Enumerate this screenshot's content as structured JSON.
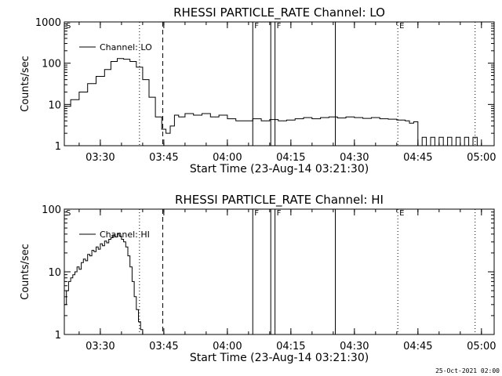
{
  "footer": {
    "timestamp": "25-Oct-2021 02:00"
  },
  "chart_data": [
    {
      "type": "line",
      "title": "RHESSI PARTICLE_RATE Channel: LO",
      "xlabel": "Start Time (23-Aug-14 03:21:30)",
      "ylabel": "Counts/sec",
      "yscale": "log",
      "xlim": [
        "03:21:30",
        "05:03:00"
      ],
      "ylim": [
        1,
        1000
      ],
      "x_ticks": [
        "03:30",
        "03:45",
        "04:00",
        "04:15",
        "04:30",
        "04:45",
        "05:00"
      ],
      "y_ticks": [
        "1",
        "10",
        "100",
        "1000"
      ],
      "legend": "top-left",
      "series": [
        {
          "name": "Channel: LO",
          "x": [
            "03:21:30",
            "03:23:00",
            "03:25:00",
            "03:27:00",
            "03:29:00",
            "03:31:00",
            "03:32:30",
            "03:34:00",
            "03:35:30",
            "03:37:00",
            "03:38:30",
            "03:40:00",
            "03:41:30",
            "03:43:00",
            "03:44:30",
            "03:45:30",
            "03:46:30",
            "03:47:30",
            "03:48:30",
            "03:50:00",
            "03:52:00",
            "03:54:00",
            "03:56:00",
            "03:58:00",
            "04:00:00",
            "04:02:00",
            "04:04:00",
            "04:06:00",
            "04:08:00",
            "04:10:00",
            "04:12:00",
            "04:14:00",
            "04:16:00",
            "04:18:00",
            "04:20:00",
            "04:22:00",
            "04:24:00",
            "04:26:00",
            "04:28:00",
            "04:30:00",
            "04:32:00",
            "04:34:00",
            "04:36:00",
            "04:38:00",
            "04:40:00",
            "04:42:00",
            "04:43:00",
            "04:44:00",
            "04:45:00",
            "04:46:00",
            "04:47:00",
            "04:48:00",
            "04:49:00",
            "04:50:00",
            "04:51:00",
            "04:52:00",
            "04:53:00",
            "04:54:00",
            "04:55:00",
            "04:56:00",
            "04:57:00",
            "04:58:00",
            "04:59:00"
          ],
          "y": [
            9,
            13,
            20,
            32,
            48,
            70,
            110,
            130,
            125,
            110,
            80,
            40,
            15,
            5,
            2.5,
            2,
            3,
            5.5,
            5,
            6,
            5.5,
            6,
            5,
            5.5,
            4.5,
            4,
            4,
            4.5,
            4,
            4.3,
            4,
            4.2,
            4.5,
            4.8,
            4.5,
            4.8,
            5,
            4.7,
            5,
            4.8,
            4.6,
            4.8,
            4.5,
            4.4,
            4.2,
            4,
            3.5,
            3.8,
            1,
            1.6,
            1,
            1.6,
            1,
            1.6,
            1,
            1.6,
            1,
            1.6,
            1,
            1.6,
            1,
            1.6,
            1
          ],
          "step": true
        }
      ],
      "markers": [
        {
          "label": "S",
          "time": "03:21:30",
          "style": "none"
        },
        {
          "label": "",
          "time": "03:39:15",
          "style": "dotted"
        },
        {
          "label": "",
          "time": "03:44:45",
          "style": "dashed"
        },
        {
          "label": "F",
          "time": "04:06:00",
          "style": "solid"
        },
        {
          "label": "",
          "time": "04:10:15",
          "style": "solid"
        },
        {
          "label": "F",
          "time": "04:11:15",
          "style": "solid"
        },
        {
          "label": "",
          "time": "04:25:30",
          "style": "solid"
        },
        {
          "label": "E",
          "time": "04:40:15",
          "style": "dotted"
        },
        {
          "label": "",
          "time": "04:58:30",
          "style": "dotted"
        }
      ]
    },
    {
      "type": "line",
      "title": "RHESSI PARTICLE_RATE Channel: HI",
      "xlabel": "Start Time (23-Aug-14 03:21:30)",
      "ylabel": "Counts/sec",
      "yscale": "log",
      "xlim": [
        "03:21:30",
        "05:03:00"
      ],
      "ylim": [
        1,
        100
      ],
      "x_ticks": [
        "03:30",
        "03:45",
        "04:00",
        "04:15",
        "04:30",
        "04:45",
        "05:00"
      ],
      "y_ticks": [
        "1",
        "10",
        "100"
      ],
      "legend": "top-left",
      "series": [
        {
          "name": "Channel: HI",
          "x": [
            "03:21:30",
            "03:22:00",
            "03:22:30",
            "03:23:00",
            "03:23:30",
            "03:24:00",
            "03:24:30",
            "03:25:00",
            "03:25:30",
            "03:26:00",
            "03:26:30",
            "03:27:00",
            "03:27:30",
            "03:28:00",
            "03:28:30",
            "03:29:00",
            "03:29:30",
            "03:30:00",
            "03:30:30",
            "03:31:00",
            "03:31:30",
            "03:32:00",
            "03:32:30",
            "03:33:00",
            "03:33:30",
            "03:34:00",
            "03:34:30",
            "03:35:00",
            "03:35:30",
            "03:36:00",
            "03:36:30",
            "03:37:00",
            "03:37:30",
            "03:38:00",
            "03:38:30",
            "03:39:00",
            "03:39:30",
            "03:40:00"
          ],
          "y": [
            3,
            5,
            7,
            8,
            9,
            10,
            12,
            11,
            14,
            16,
            15,
            19,
            18,
            22,
            21,
            25,
            23,
            28,
            26,
            31,
            29,
            33,
            35,
            38,
            36,
            40,
            37,
            33,
            30,
            25,
            18,
            12,
            7,
            4,
            2.5,
            1.6,
            1.2,
            1
          ],
          "step": true
        }
      ],
      "markers": [
        {
          "label": "S",
          "time": "03:21:30",
          "style": "none"
        },
        {
          "label": "",
          "time": "03:39:15",
          "style": "dotted"
        },
        {
          "label": "",
          "time": "03:44:45",
          "style": "dashed"
        },
        {
          "label": "F",
          "time": "04:06:00",
          "style": "solid"
        },
        {
          "label": "",
          "time": "04:10:15",
          "style": "solid"
        },
        {
          "label": "F",
          "time": "04:11:15",
          "style": "solid"
        },
        {
          "label": "",
          "time": "04:25:30",
          "style": "solid"
        },
        {
          "label": "E",
          "time": "04:40:15",
          "style": "dotted"
        },
        {
          "label": "",
          "time": "04:58:30",
          "style": "dotted"
        }
      ]
    }
  ]
}
